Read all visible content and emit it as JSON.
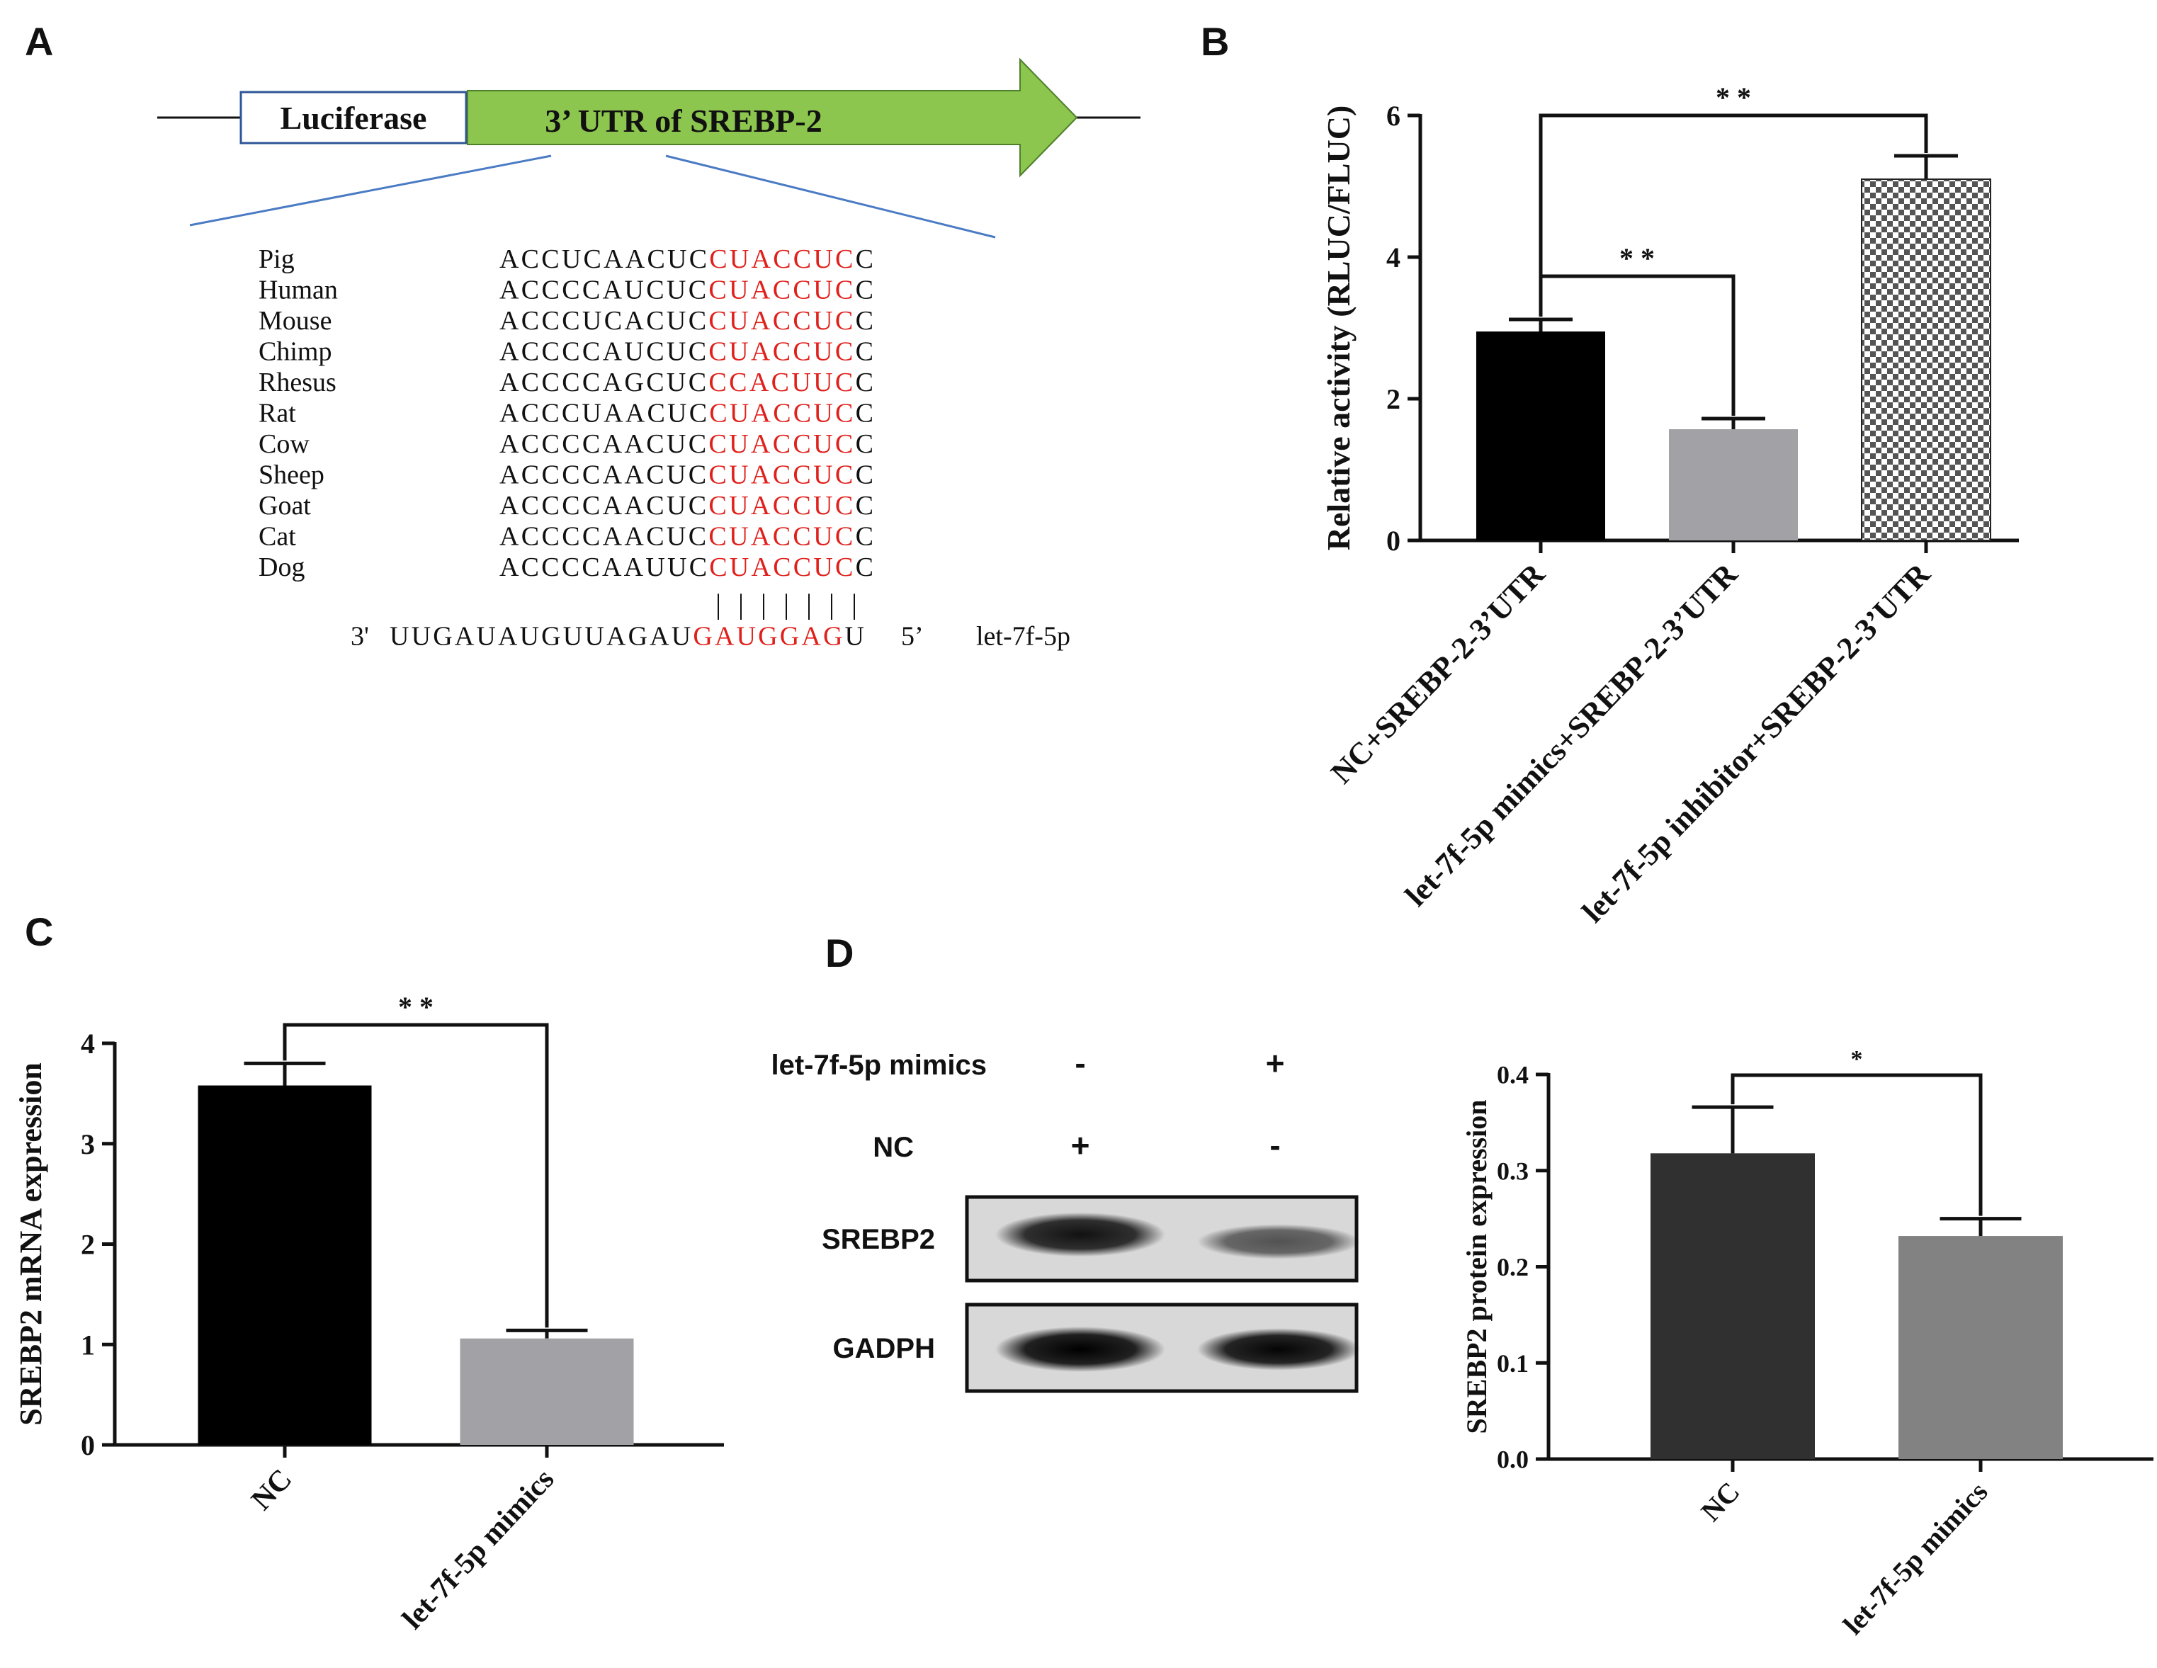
{
  "panels": {
    "a": {
      "letter": "A"
    },
    "b": {
      "letter": "B"
    },
    "c": {
      "letter": "C"
    },
    "d": {
      "letter": "D"
    }
  },
  "construct": {
    "box_label": "Luciferase",
    "arrow_label": "3’ UTR of SREBP-2"
  },
  "alignment": {
    "rows": [
      {
        "species": "Pig",
        "black": "ACCUCAACUC",
        "red": "CUACCUC",
        "tail": "C"
      },
      {
        "species": "Human",
        "black": "ACCCCAUCUC",
        "red": "CUACCUC",
        "tail": "C"
      },
      {
        "species": "Mouse",
        "black": "ACCCUCACUC",
        "red": "CUACCUC",
        "tail": "C"
      },
      {
        "species": "Chimp",
        "black": "ACCCCAUCUC",
        "red": "CUACCUC",
        "tail": "C"
      },
      {
        "species": "Rhesus",
        "black": "ACCCCAGCUC",
        "red": "CCACUUC",
        "tail": "C"
      },
      {
        "species": "Rat",
        "black": "ACCCUAACUC",
        "red": "CUACCUC",
        "tail": "C"
      },
      {
        "species": "Cow",
        "black": "ACCCCAACUC",
        "red": "CUACCUC",
        "tail": "C"
      },
      {
        "species": "Sheep",
        "black": "ACCCCAACUC",
        "red": "CUACCUC",
        "tail": "C"
      },
      {
        "species": "Goat",
        "black": "ACCCCAACUC",
        "red": "CUACCUC",
        "tail": "C"
      },
      {
        "species": "Cat",
        "black": "ACCCCAACUC",
        "red": "CUACCUC",
        "tail": "C"
      },
      {
        "species": "Dog",
        "black": "ACCCCAAUUC",
        "red": "CUACCUC",
        "tail": "C"
      }
    ],
    "pairing": "|||||||",
    "mirna": {
      "end3": "3'",
      "black": "UUGAUAUGUUAGAU",
      "red": "GAUGGAG",
      "tail": "U",
      "end5": "5’",
      "name": "let-7f-5p"
    }
  },
  "chart_data": [
    {
      "id": "B",
      "type": "bar",
      "categories": [
        "NC+SREBP-2-3’UTR",
        "let-7f-5p mimics+SREBP-2-3’UTR",
        "let-7f-5p inhibitor+SREBP-2-3’UTR"
      ],
      "values": [
        2.95,
        1.57,
        5.1
      ],
      "errors": [
        0.17,
        0.15,
        0.33
      ],
      "colors": [
        "#000000",
        "#a2a2a6",
        "checker"
      ],
      "ylabel": "Relative activity (RLUC/FLUC)",
      "ylim": [
        0,
        6
      ],
      "yticks": [
        "0",
        "2",
        "4",
        "6"
      ],
      "significance": [
        {
          "from": 0,
          "to": 2,
          "label": "* *"
        },
        {
          "from": 0,
          "to": 1,
          "label": "* *"
        }
      ]
    },
    {
      "id": "C",
      "type": "bar",
      "categories": [
        "NC",
        "let-7f-5p mimics"
      ],
      "values": [
        3.58,
        1.06
      ],
      "errors": [
        0.22,
        0.08
      ],
      "colors": [
        "#000000",
        "#a2a2a6"
      ],
      "ylabel": "SREBP2 mRNA expression",
      "ylim": [
        0,
        4
      ],
      "yticks": [
        "0",
        "1",
        "2",
        "3",
        "4"
      ],
      "significance": [
        {
          "from": 0,
          "to": 1,
          "label": "* *"
        }
      ]
    },
    {
      "id": "D",
      "type": "bar",
      "categories": [
        "NC",
        "let-7f-5p mimics"
      ],
      "values": [
        0.318,
        0.232
      ],
      "errors": [
        0.048,
        0.018
      ],
      "colors": [
        "#2f302f",
        "#828282"
      ],
      "ylabel": "SREBP2 protein  expression",
      "ylim": [
        0,
        0.4
      ],
      "yticks": [
        "0.0",
        "0.1",
        "0.2",
        "0.3",
        "0.4"
      ],
      "significance": [
        {
          "from": 0,
          "to": 1,
          "label": "*"
        }
      ]
    }
  ],
  "blot": {
    "conditions": [
      {
        "label": "let-7f-5p mimics",
        "lane1": "-",
        "lane2": "+"
      },
      {
        "label": "NC",
        "lane1": "+",
        "lane2": "-"
      }
    ],
    "bands": [
      {
        "label": "SREBP2",
        "lane1_intensity": 0.92,
        "lane2_intensity": 0.62
      },
      {
        "label": "GADPH",
        "lane1_intensity": 1.0,
        "lane2_intensity": 0.98
      }
    ]
  }
}
